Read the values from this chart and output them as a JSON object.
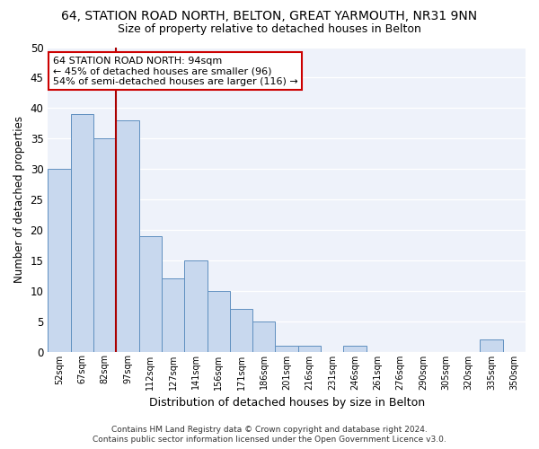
{
  "title_line1": "64, STATION ROAD NORTH, BELTON, GREAT YARMOUTH, NR31 9NN",
  "title_line2": "Size of property relative to detached houses in Belton",
  "xlabel": "Distribution of detached houses by size in Belton",
  "ylabel": "Number of detached properties",
  "categories": [
    "52sqm",
    "67sqm",
    "82sqm",
    "97sqm",
    "112sqm",
    "127sqm",
    "141sqm",
    "156sqm",
    "171sqm",
    "186sqm",
    "201sqm",
    "216sqm",
    "231sqm",
    "246sqm",
    "261sqm",
    "276sqm",
    "290sqm",
    "305sqm",
    "320sqm",
    "335sqm",
    "350sqm"
  ],
  "values": [
    30,
    39,
    35,
    38,
    19,
    12,
    15,
    10,
    7,
    5,
    1,
    1,
    0,
    1,
    0,
    0,
    0,
    0,
    0,
    2,
    0
  ],
  "bar_color": "#c8d8ee",
  "bar_edge_color": "#6090c0",
  "vline_x": 2.5,
  "vline_color": "#aa0000",
  "ylim": [
    0,
    50
  ],
  "yticks": [
    0,
    5,
    10,
    15,
    20,
    25,
    30,
    35,
    40,
    45,
    50
  ],
  "annotation_lines": [
    "64 STATION ROAD NORTH: 94sqm",
    "← 45% of detached houses are smaller (96)",
    "54% of semi-detached houses are larger (116) →"
  ],
  "annotation_box_color": "#ffffff",
  "annotation_box_edge": "#cc0000",
  "footer_line1": "Contains HM Land Registry data © Crown copyright and database right 2024.",
  "footer_line2": "Contains public sector information licensed under the Open Government Licence v3.0.",
  "bg_color": "#eef2fa",
  "grid_color": "#ffffff",
  "title1_fontsize": 10,
  "title2_fontsize": 9,
  "xlabel_fontsize": 9,
  "ylabel_fontsize": 8.5,
  "footer_fontsize": 6.5
}
